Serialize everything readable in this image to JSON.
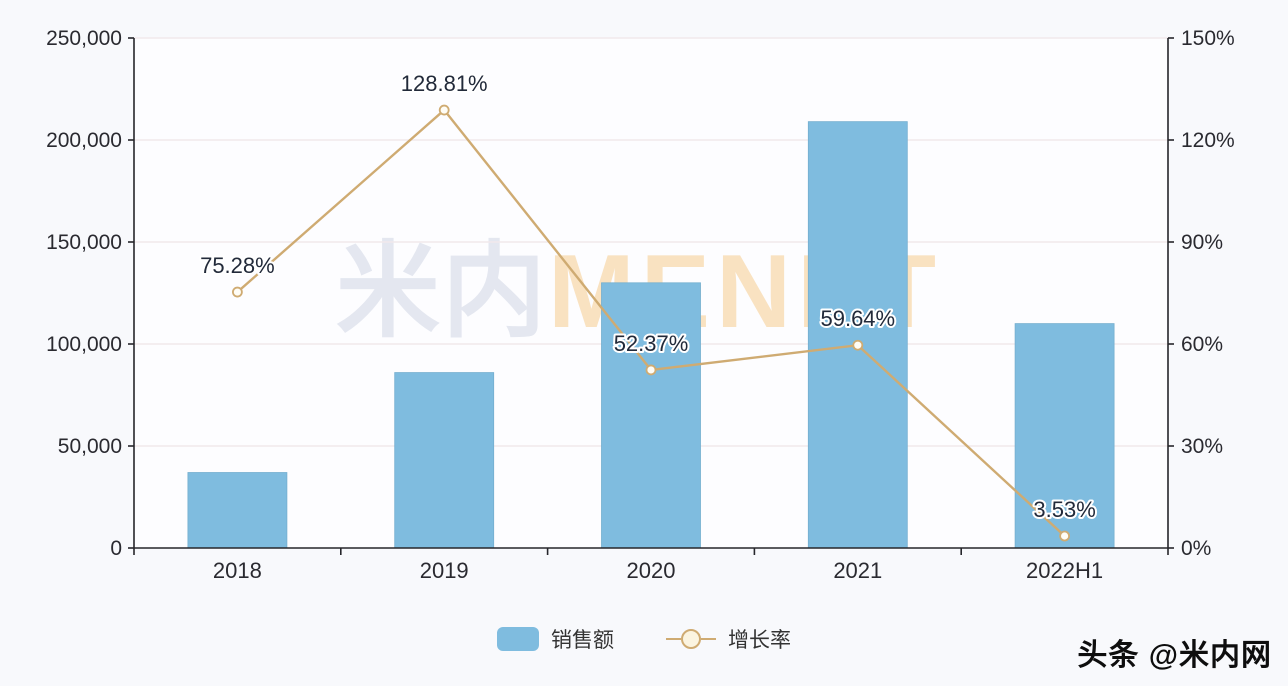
{
  "chart_data": {
    "type": "combo",
    "categories": [
      "2018",
      "2019",
      "2020",
      "2021",
      "2022H1"
    ],
    "series": [
      {
        "name": "销售额",
        "type": "bar",
        "axis": "left",
        "values": [
          37000,
          86000,
          130000,
          209000,
          110000
        ],
        "color": "#7fbcdf"
      },
      {
        "name": "增长率",
        "type": "line",
        "axis": "right",
        "values": [
          75.28,
          128.81,
          52.37,
          59.64,
          3.53
        ],
        "labels": [
          "75.28%",
          "128.81%",
          "52.37%",
          "59.64%",
          "3.53%"
        ],
        "color": "#cfab72"
      }
    ],
    "left_axis": {
      "min": 0,
      "max": 250000,
      "ticks": [
        "0",
        "50,000",
        "100,000",
        "150,000",
        "200,000",
        "250,000"
      ]
    },
    "right_axis": {
      "min": 0,
      "max": 150,
      "ticks": [
        "0%",
        "30%",
        "60%",
        "90%",
        "120%",
        "150%"
      ]
    },
    "grid": true,
    "legend_position": "bottom",
    "title": ""
  },
  "legend": {
    "items": [
      {
        "label": "销售额",
        "marker": "bar"
      },
      {
        "label": "增长率",
        "marker": "line-circle"
      }
    ]
  },
  "watermark": {
    "cn": "米内",
    "en": "MENET"
  },
  "branding": {
    "text": "头条 @米内网"
  },
  "colors": {
    "bar": "#7fbcdf",
    "bar_edge": "#74aecf",
    "line": "#cfab72",
    "marker_fill": "#fffdf6",
    "grid": "#f1e9ec",
    "axis": "#26262b",
    "tick_text": "#2a2a30",
    "data_label": "#222a3a",
    "plot_bg": "#fdfdff",
    "page_bg": "#f8f9fc"
  }
}
